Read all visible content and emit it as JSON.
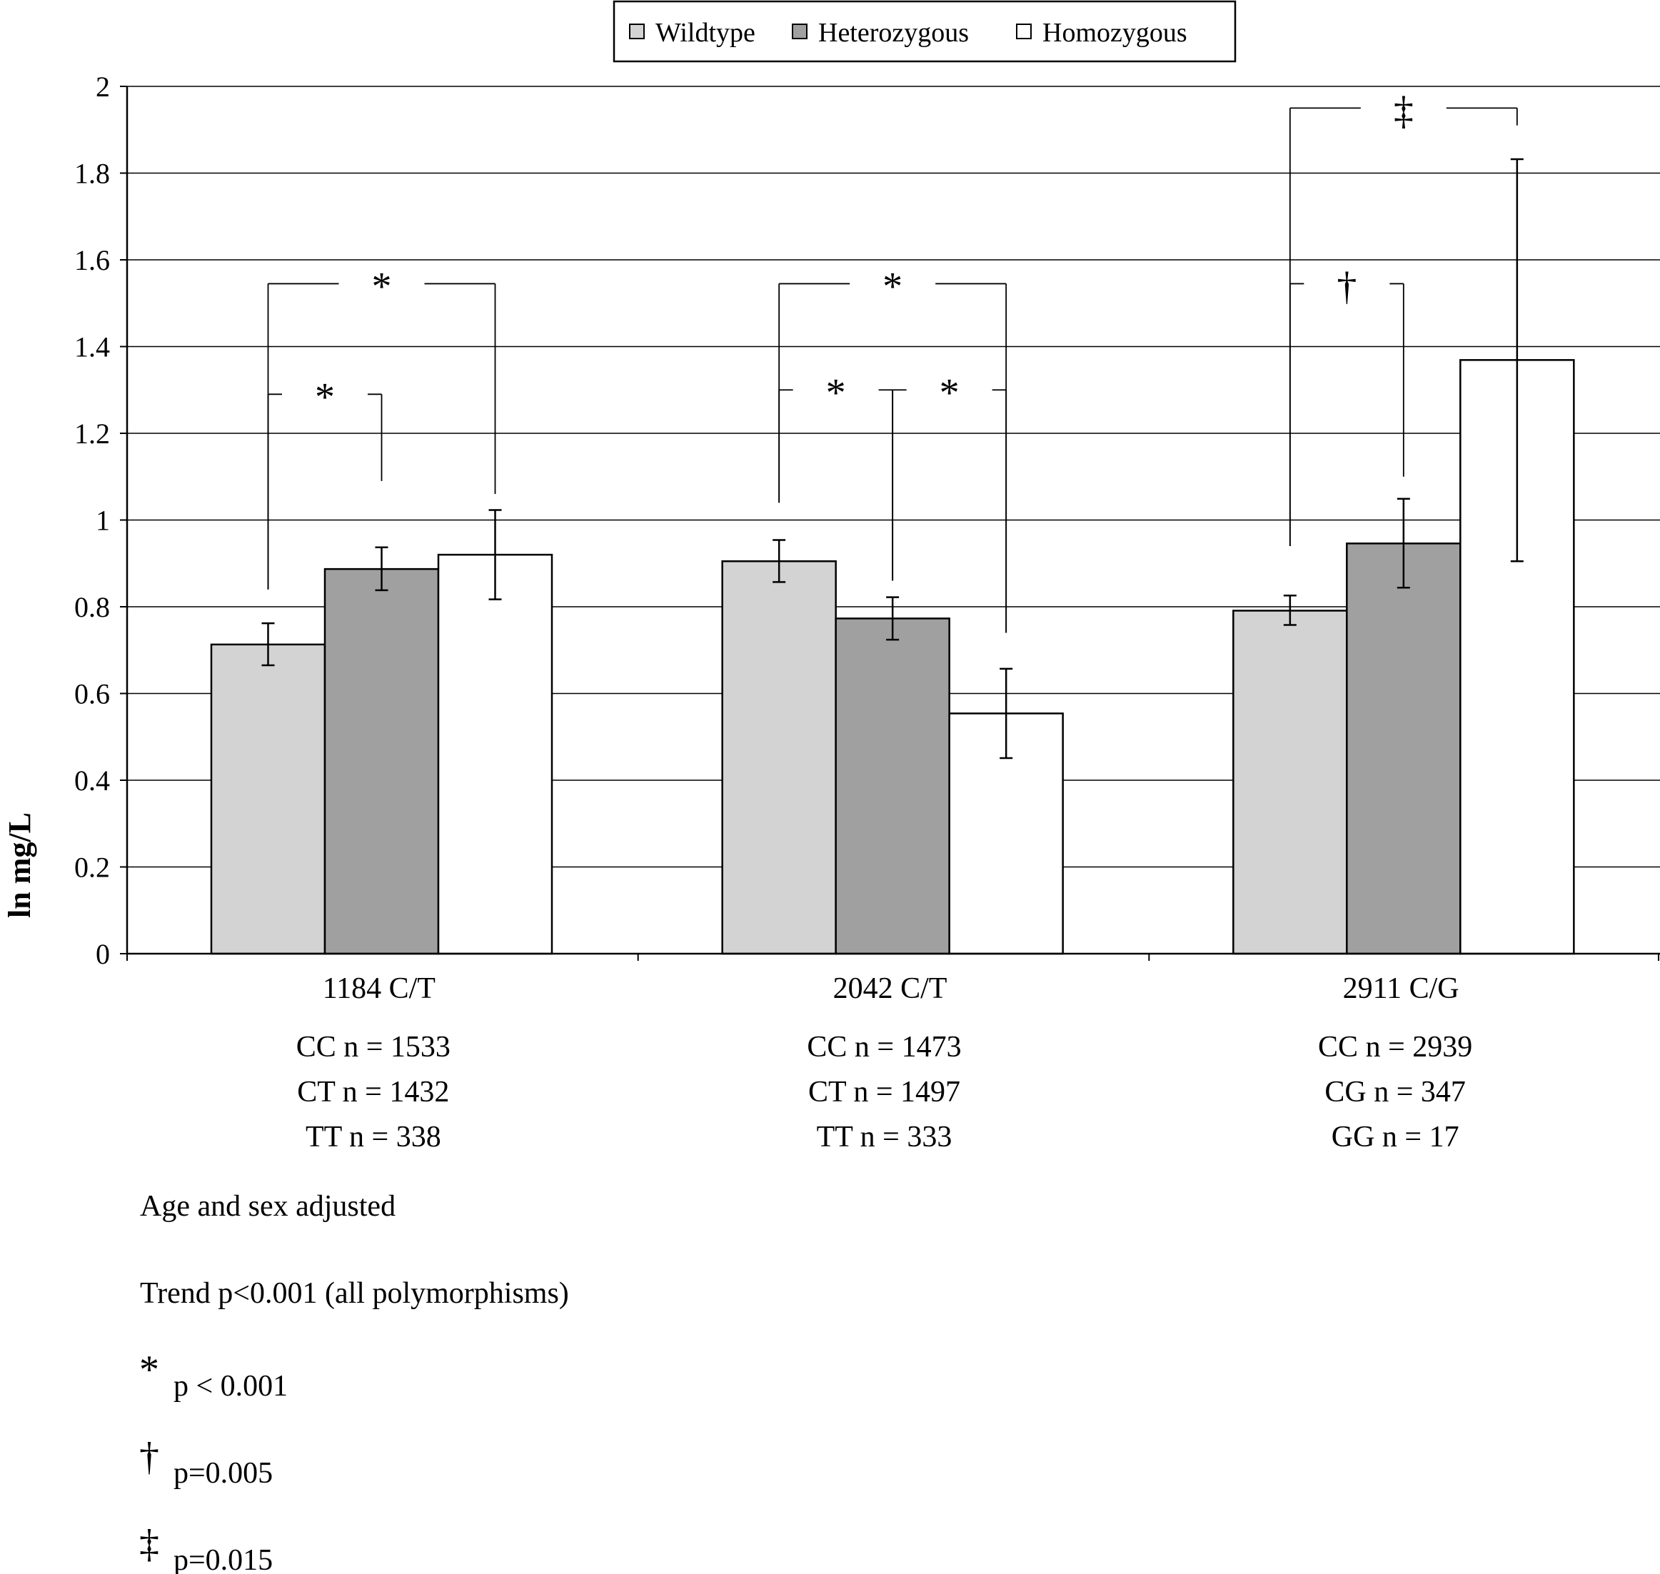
{
  "chart_data": {
    "type": "bar",
    "title": "",
    "xlabel": "",
    "ylabel": "ln mg/L",
    "ylim": [
      0,
      2
    ],
    "yticks": [
      "0",
      "0.2",
      "0.4",
      "0.6",
      "0.8",
      "1",
      "1.2",
      "1.4",
      "1.6",
      "1.8",
      "2"
    ],
    "grid": true,
    "legend_position": "top-center",
    "categories": [
      "1184 C/T",
      "2042 C/T",
      "2911 C/G"
    ],
    "series": [
      {
        "name": "Wildtype",
        "color": "#d3d3d3",
        "values": [
          0.713,
          0.905,
          0.791
        ],
        "error_low": [
          0.665,
          0.857,
          0.758
        ],
        "error_high": [
          0.762,
          0.954,
          0.826
        ]
      },
      {
        "name": "Heterozygous",
        "color": "#a0a0a0",
        "values": [
          0.887,
          0.773,
          0.946
        ],
        "error_low": [
          0.838,
          0.724,
          0.844
        ],
        "error_high": [
          0.937,
          0.822,
          1.049
        ]
      },
      {
        "name": "Homozygous",
        "color": "#ffffff",
        "values": [
          0.92,
          0.554,
          1.369
        ],
        "error_low": [
          0.817,
          0.451,
          0.905
        ],
        "error_high": [
          1.023,
          0.657,
          1.832
        ]
      }
    ],
    "sample_sizes": [
      [
        "CC n = 1533",
        "CT n = 1432",
        "TT n = 338"
      ],
      [
        "CC n = 1473",
        "CT n = 1497",
        "TT n = 333"
      ],
      [
        "CC n = 2939",
        "CG n = 347",
        "GG n = 17"
      ]
    ],
    "significance_brackets": [
      {
        "group": 0,
        "from": 0,
        "to": 2,
        "y": 1.545,
        "drop_from": 0.84,
        "drop_to": 1.06,
        "symbol": "*"
      },
      {
        "group": 0,
        "from": 0,
        "to": 1,
        "y": 1.29,
        "drop_from": 0.84,
        "drop_to": 1.09,
        "symbol": "*"
      },
      {
        "group": 1,
        "from": 0,
        "to": 2,
        "y": 1.545,
        "drop_from": 1.04,
        "drop_to": 0.74,
        "symbol": "*"
      },
      {
        "group": 1,
        "from": 0,
        "to": 1,
        "y": 1.3,
        "drop_from": 1.04,
        "drop_to": 0.86,
        "symbol": "*"
      },
      {
        "group": 1,
        "from": 1,
        "to": 2,
        "y": 1.3,
        "drop_from": 0.86,
        "drop_to": 0.74,
        "symbol": "*"
      },
      {
        "group": 2,
        "from": 0,
        "to": 2,
        "y": 1.95,
        "drop_from": 0.94,
        "drop_to": 1.91,
        "symbol": "‡"
      },
      {
        "group": 2,
        "from": 0,
        "to": 1,
        "y": 1.545,
        "drop_from": 0.94,
        "drop_to": 1.1,
        "symbol": "†"
      }
    ]
  },
  "notes": [
    {
      "symbol": "",
      "text": "Age and sex adjusted"
    },
    {
      "symbol": "",
      "text": "Trend p<0.001 (all polymorphisms)"
    },
    {
      "symbol": "*",
      "text": "p < 0.001"
    },
    {
      "symbol": "†",
      "text": "p=0.005"
    },
    {
      "symbol": "‡",
      "text": "p=0.015"
    }
  ]
}
